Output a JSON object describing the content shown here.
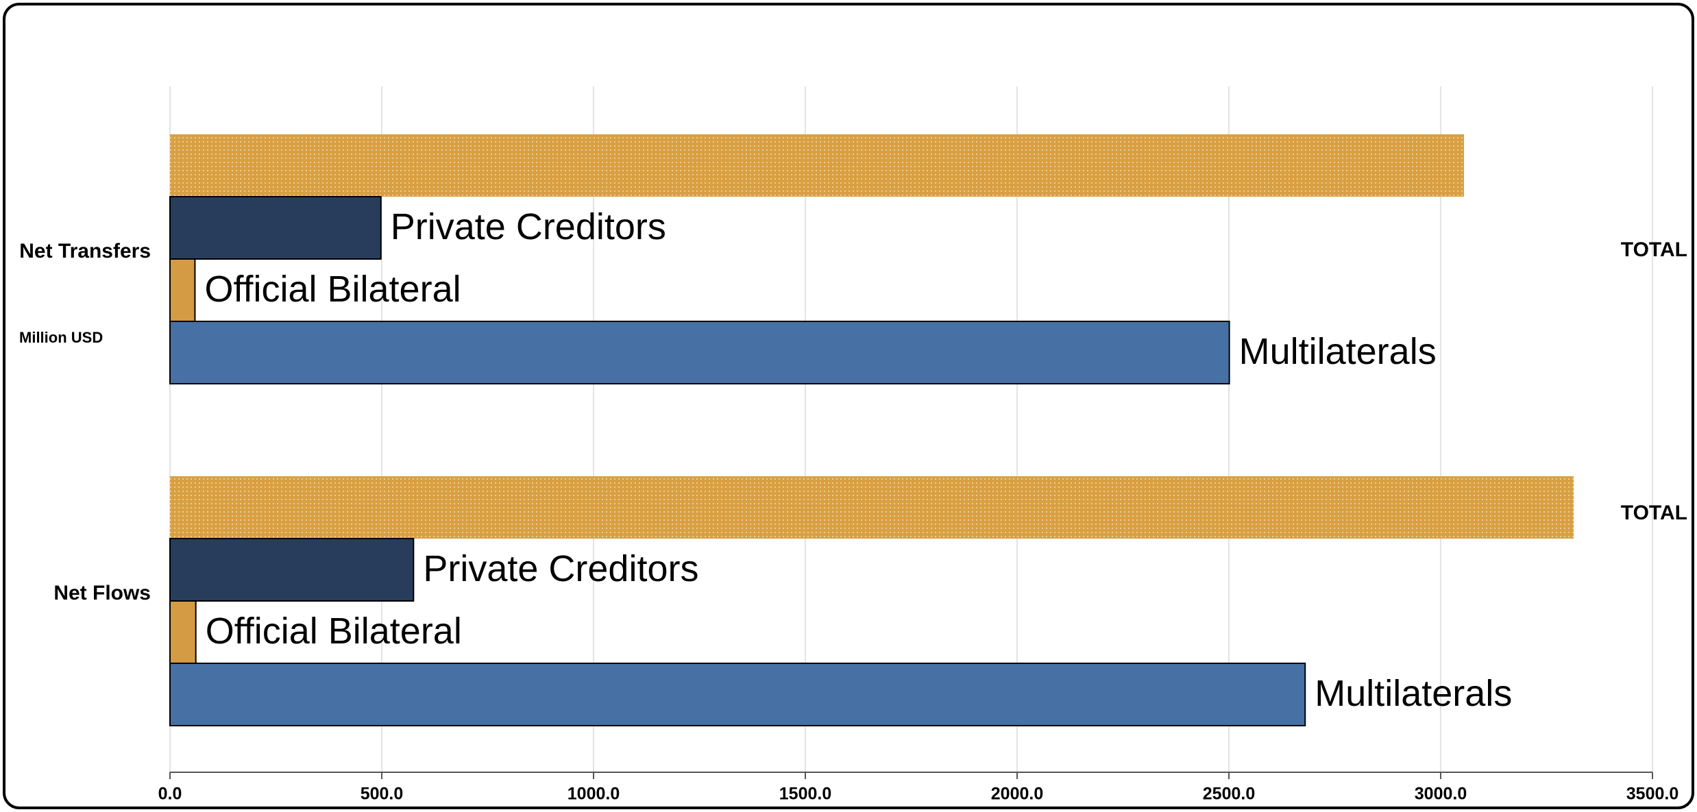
{
  "chart_data": {
    "type": "barh",
    "x_label": "Million USD",
    "categories": [
      "Net Transfers",
      "Net Flows"
    ],
    "series": [
      {
        "name": "TOTAL",
        "color": "#d9a043",
        "hatch": true,
        "values": [
          3055,
          3314
        ]
      },
      {
        "name": "Private Creditors",
        "color": "#283d5c",
        "values": [
          498,
          575
        ]
      },
      {
        "name": "Official Bilateral",
        "color": "#d49a44",
        "values": [
          59,
          61
        ]
      },
      {
        "name": "Multilaterals",
        "color": "#4771a5",
        "values": [
          2501,
          2680
        ]
      }
    ],
    "xlim": [
      0,
      3500
    ],
    "xticks": [
      {
        "value": 0,
        "label": "0.0"
      },
      {
        "value": 500,
        "label": "500.0"
      },
      {
        "value": 1000,
        "label": "1000.0"
      },
      {
        "value": 1500,
        "label": "1500.0"
      },
      {
        "value": 2000,
        "label": "2000.0"
      },
      {
        "value": 2500,
        "label": "2500.0"
      },
      {
        "value": 3000,
        "label": "3000.0"
      },
      {
        "value": 3500,
        "label": "3500.0"
      }
    ],
    "grid": true
  }
}
